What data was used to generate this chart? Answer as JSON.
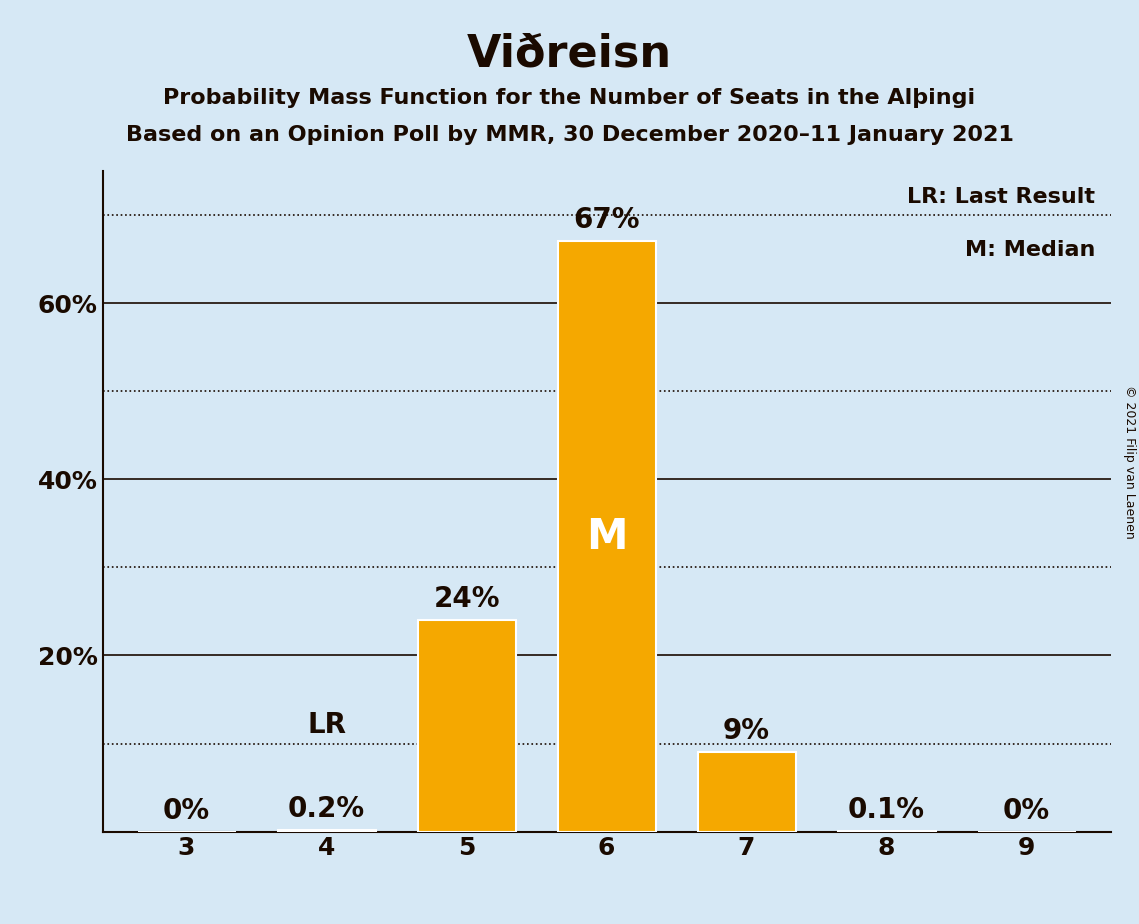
{
  "title": "Viðreisn",
  "subtitle1": "Probability Mass Function for the Number of Seats in the Alþingi",
  "subtitle2": "Based on an Opinion Poll by MMR, 30 December 2020–11 January 2021",
  "copyright": "© 2021 Filip van Laenen",
  "categories": [
    3,
    4,
    5,
    6,
    7,
    8,
    9
  ],
  "values": [
    0.0,
    0.2,
    24.0,
    67.0,
    9.0,
    0.1,
    0.0
  ],
  "bar_color": "#F5A800",
  "background_color": "#D6E8F5",
  "text_color": "#1a0a00",
  "median_bar": 6,
  "lr_bar": 4,
  "legend_lr": "LR: Last Result",
  "legend_m": "M: Median",
  "ylim": [
    0,
    75
  ],
  "solid_yticks": [
    20,
    40,
    60
  ],
  "dotted_yticks": [
    10,
    30,
    50,
    70
  ],
  "title_fontsize": 32,
  "subtitle_fontsize": 16,
  "tick_fontsize": 18,
  "annot_fontsize": 20,
  "legend_fontsize": 16,
  "copyright_fontsize": 9
}
